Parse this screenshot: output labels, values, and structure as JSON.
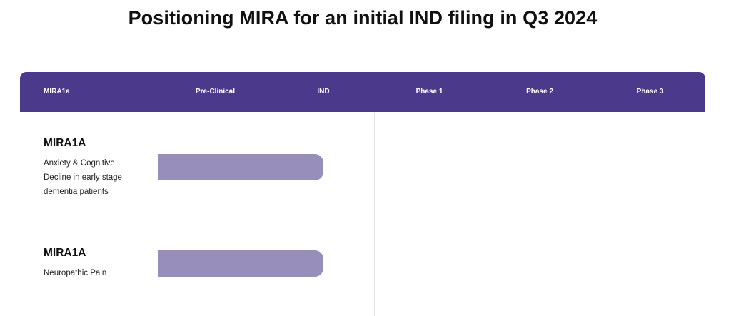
{
  "title": "Positioning MIRA for an initial IND filing in Q3 2024",
  "colors": {
    "header_bg": "#4b3a8c",
    "bar": "#978ebb",
    "gridline": "#e4e4e4"
  },
  "chart_data": {
    "type": "bar",
    "orientation": "horizontal",
    "header_label": "MIRA1a",
    "stages": [
      "Pre-Clinical",
      "IND",
      "Phase 1",
      "Phase 2",
      "Phase 3"
    ],
    "rows": [
      {
        "name": "MIRA1A",
        "description": "Anxiety & Cognitive Decline in early stage dementia patients",
        "progress_stage": "IND",
        "progress_stage_fraction": 0.5
      },
      {
        "name": "MIRA1A",
        "description": "Neuropathic Pain",
        "progress_stage": "IND",
        "progress_stage_fraction": 0.5
      }
    ]
  }
}
